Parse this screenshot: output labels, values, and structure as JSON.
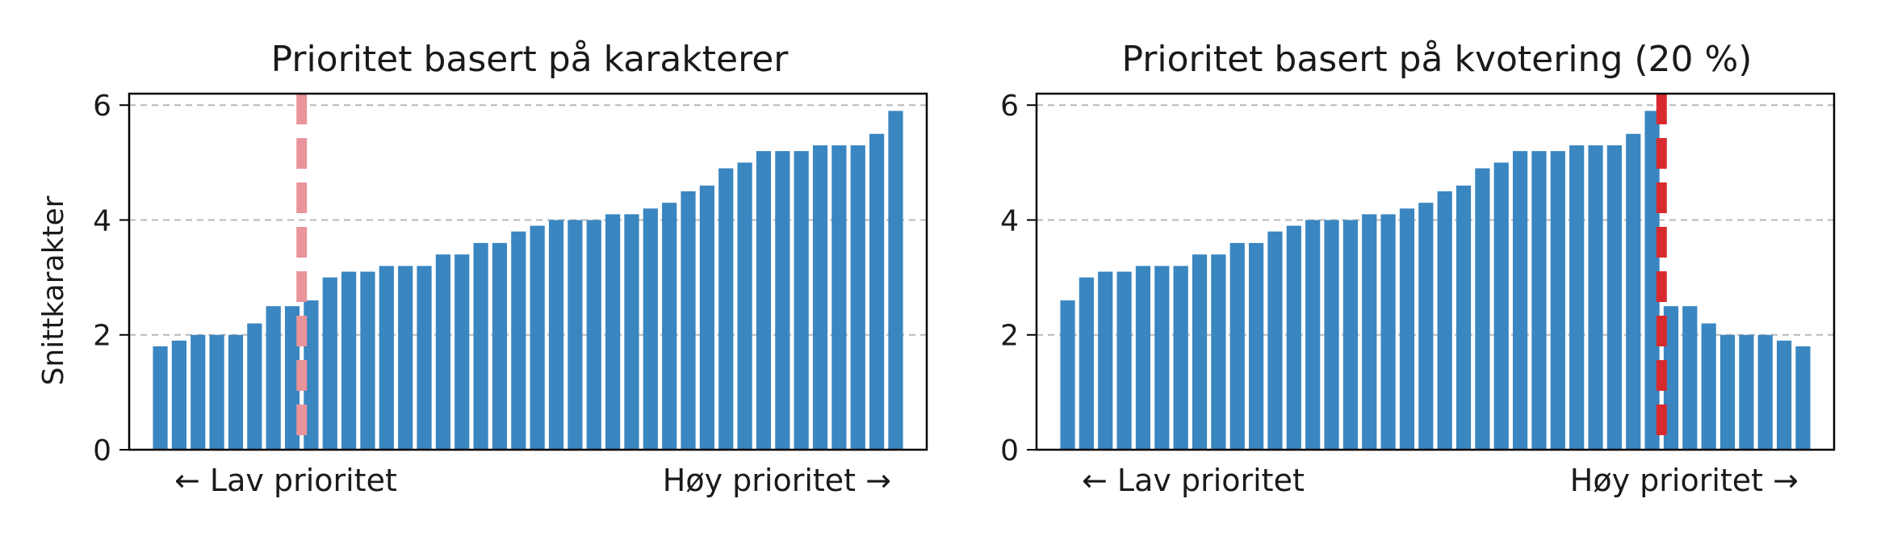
{
  "chart_data": [
    {
      "type": "bar",
      "title": "Prioritet basert på karakterer",
      "ylabel": "Snittkarakter",
      "ylim": [
        0,
        6.2
      ],
      "yticks": [
        "0",
        "2",
        "4",
        "6"
      ],
      "grid": "y-dashed",
      "bar_color": "#3a86c0",
      "values": [
        1.8,
        1.9,
        2.0,
        2.0,
        2.0,
        2.2,
        2.5,
        2.5,
        2.6,
        3.0,
        3.1,
        3.1,
        3.2,
        3.2,
        3.2,
        3.4,
        3.4,
        3.6,
        3.6,
        3.8,
        3.9,
        4.0,
        4.0,
        4.0,
        4.1,
        4.1,
        4.2,
        4.3,
        4.5,
        4.6,
        4.9,
        5.0,
        5.2,
        5.2,
        5.2,
        5.3,
        5.3,
        5.3,
        5.5,
        5.9
      ],
      "cutoff": {
        "after_index": 7.5,
        "color": "#e8949a"
      },
      "low_label": "← Lav prioritet",
      "high_label": "Høy prioritet →"
    },
    {
      "type": "bar",
      "title": "Prioritet basert på kvotering (20 %)",
      "ylabel": "",
      "ylim": [
        0,
        6.2
      ],
      "yticks": [
        "0",
        "2",
        "4",
        "6"
      ],
      "grid": "y-dashed",
      "bar_color": "#3a86c0",
      "values": [
        2.6,
        3.0,
        3.1,
        3.1,
        3.2,
        3.2,
        3.2,
        3.4,
        3.4,
        3.6,
        3.6,
        3.8,
        3.9,
        4.0,
        4.0,
        4.0,
        4.1,
        4.1,
        4.2,
        4.3,
        4.5,
        4.6,
        4.9,
        5.0,
        5.2,
        5.2,
        5.2,
        5.3,
        5.3,
        5.3,
        5.5,
        5.9,
        2.5,
        2.5,
        2.2,
        2.0,
        2.0,
        2.0,
        1.9,
        1.8
      ],
      "cutoff": {
        "after_index": 31.5,
        "color": "#d62a2f"
      },
      "low_label": "← Lav prioritet",
      "high_label": "Høy prioritet →"
    }
  ]
}
